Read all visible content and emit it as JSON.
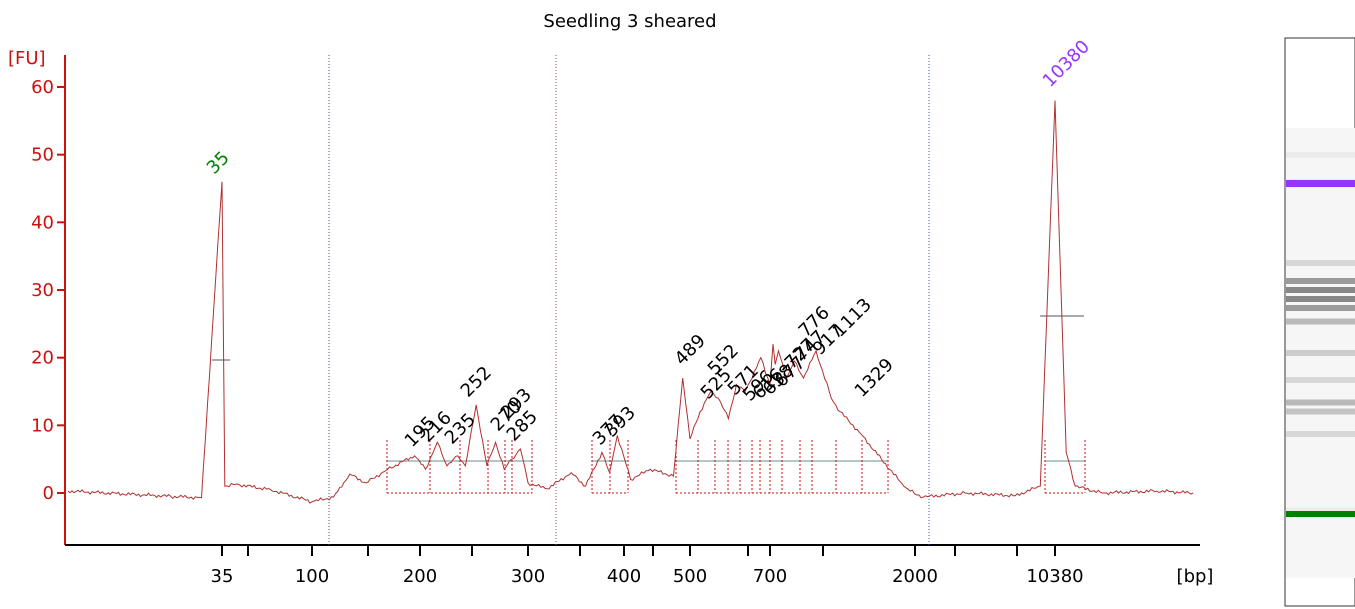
{
  "chart_data": {
    "type": "line",
    "title": "Seedling 3 sheared",
    "ylabel": "[FU]",
    "xlabel": "[bp]",
    "ylim": [
      -7,
      63
    ],
    "yticks": [
      0,
      10,
      20,
      30,
      40,
      50,
      60
    ],
    "xtick_labels": [
      "35",
      "100",
      "200",
      "300",
      "400",
      "500",
      "700",
      "2000",
      "10380"
    ],
    "grid": false,
    "marker_peaks": [
      {
        "label": "35",
        "x": 35,
        "y": 46,
        "color": "#008000"
      },
      {
        "label": "10380",
        "x": 10380,
        "y": 58,
        "color": "#9933ff"
      }
    ],
    "peak_labels": [
      "195",
      "216",
      "235",
      "252",
      "270",
      "285",
      "293",
      "377",
      "393",
      "489",
      "525",
      "552",
      "571",
      "596",
      "616",
      "638",
      "677",
      "727",
      "747",
      "776",
      "917",
      "1113",
      "1329"
    ],
    "series": [
      {
        "values": [
          {
            "x": 20,
            "y": 0.3
          },
          {
            "x": 30,
            "y": -0.5
          },
          {
            "x": 33,
            "y": -0.7
          },
          {
            "x": 35,
            "y": 46
          },
          {
            "x": 37,
            "y": 1
          },
          {
            "x": 45,
            "y": 1.3
          },
          {
            "x": 70,
            "y": 0.5
          },
          {
            "x": 100,
            "y": -1.3
          },
          {
            "x": 120,
            "y": -0.6
          },
          {
            "x": 135,
            "y": 2.8
          },
          {
            "x": 150,
            "y": 1.5
          },
          {
            "x": 170,
            "y": 3.5
          },
          {
            "x": 195,
            "y": 5.5
          },
          {
            "x": 205,
            "y": 3.5
          },
          {
            "x": 216,
            "y": 7.5
          },
          {
            "x": 225,
            "y": 4
          },
          {
            "x": 235,
            "y": 5.5
          },
          {
            "x": 242,
            "y": 4
          },
          {
            "x": 252,
            "y": 13
          },
          {
            "x": 262,
            "y": 4
          },
          {
            "x": 270,
            "y": 7.5
          },
          {
            "x": 278,
            "y": 3.5
          },
          {
            "x": 285,
            "y": 5
          },
          {
            "x": 293,
            "y": 6.5
          },
          {
            "x": 300,
            "y": 1.5
          },
          {
            "x": 320,
            "y": 0.6
          },
          {
            "x": 345,
            "y": 3
          },
          {
            "x": 360,
            "y": 1
          },
          {
            "x": 377,
            "y": 6
          },
          {
            "x": 385,
            "y": 3
          },
          {
            "x": 393,
            "y": 8.5
          },
          {
            "x": 410,
            "y": 2
          },
          {
            "x": 440,
            "y": 3.5
          },
          {
            "x": 475,
            "y": 2.5
          },
          {
            "x": 489,
            "y": 17
          },
          {
            "x": 500,
            "y": 8
          },
          {
            "x": 525,
            "y": 12
          },
          {
            "x": 552,
            "y": 15
          },
          {
            "x": 571,
            "y": 14
          },
          {
            "x": 596,
            "y": 11
          },
          {
            "x": 616,
            "y": 16
          },
          {
            "x": 638,
            "y": 15
          },
          {
            "x": 677,
            "y": 20
          },
          {
            "x": 700,
            "y": 16
          },
          {
            "x": 727,
            "y": 22
          },
          {
            "x": 747,
            "y": 19
          },
          {
            "x": 776,
            "y": 21
          },
          {
            "x": 850,
            "y": 17
          },
          {
            "x": 917,
            "y": 19.5
          },
          {
            "x": 1000,
            "y": 17
          },
          {
            "x": 1113,
            "y": 21
          },
          {
            "x": 1250,
            "y": 14
          },
          {
            "x": 1329,
            "y": 12
          },
          {
            "x": 1500,
            "y": 9
          },
          {
            "x": 1700,
            "y": 5
          },
          {
            "x": 1900,
            "y": 1
          },
          {
            "x": 2100,
            "y": -0.3
          },
          {
            "x": 2500,
            "y": -0.6
          },
          {
            "x": 5000,
            "y": 0
          },
          {
            "x": 8000,
            "y": -0.4
          },
          {
            "x": 9500,
            "y": 1
          },
          {
            "x": 10380,
            "y": 58
          },
          {
            "x": 11000,
            "y": 6
          },
          {
            "x": 11500,
            "y": 1
          },
          {
            "x": 13000,
            "y": 0
          },
          {
            "x": 16000,
            "y": 0.3
          },
          {
            "x": 18000,
            "y": 0
          }
        ]
      }
    ]
  },
  "gel_lane": {
    "bands": [
      {
        "pos": 0.06,
        "intensity": 0.05
      },
      {
        "pos": 0.12,
        "intensity": 0.05
      },
      {
        "pos": 0.3,
        "intensity": 0.15
      },
      {
        "pos": 0.34,
        "intensity": 0.45
      },
      {
        "pos": 0.36,
        "intensity": 0.55
      },
      {
        "pos": 0.38,
        "intensity": 0.55
      },
      {
        "pos": 0.4,
        "intensity": 0.45
      },
      {
        "pos": 0.43,
        "intensity": 0.3
      },
      {
        "pos": 0.5,
        "intensity": 0.2
      },
      {
        "pos": 0.56,
        "intensity": 0.15
      },
      {
        "pos": 0.61,
        "intensity": 0.3
      },
      {
        "pos": 0.63,
        "intensity": 0.25
      },
      {
        "pos": 0.68,
        "intensity": 0.15
      },
      {
        "pos": 0.85,
        "intensity": 0.05
      }
    ],
    "upper_marker_color": "#9933ff",
    "lower_marker_color": "#008000"
  }
}
